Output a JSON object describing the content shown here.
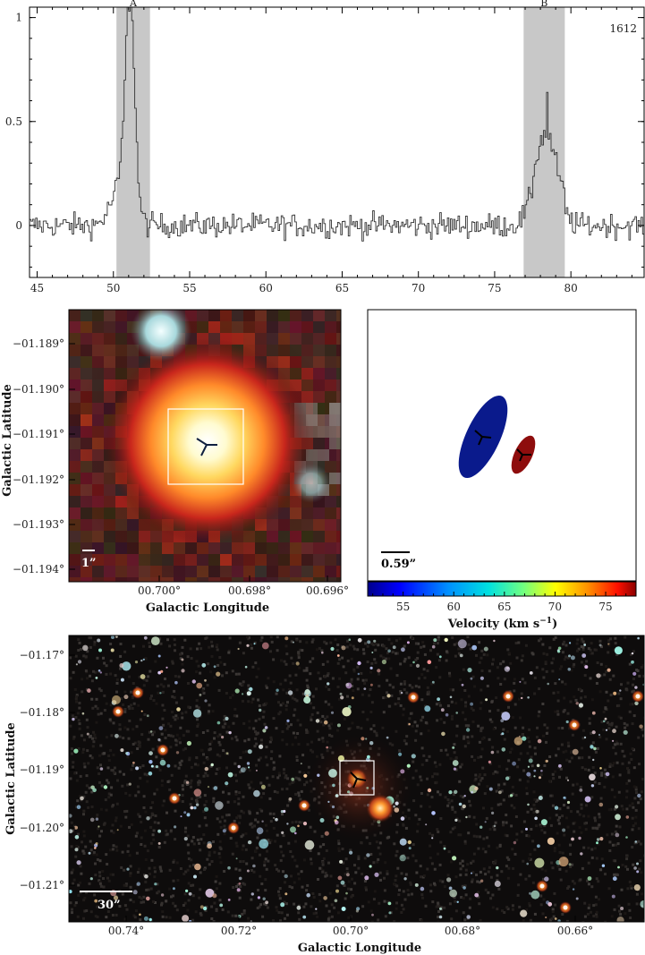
{
  "chart_data": [
    {
      "type": "line",
      "annotation": "1612",
      "regions": [
        {
          "label": "A",
          "x_range": [
            50.2,
            52.4
          ]
        },
        {
          "label": "B",
          "x_range": [
            76.9,
            79.6
          ]
        }
      ],
      "xlim": [
        44.5,
        84.8
      ],
      "ylim": [
        -0.25,
        1.05
      ],
      "xticks": [
        45,
        50,
        55,
        60,
        65,
        70,
        75,
        80
      ],
      "yticks": [
        0,
        0.5,
        1
      ],
      "ytick_labels": [
        "0",
        "0.5",
        "1"
      ],
      "series": [
        {
          "values_note": "",
          "peaks": [
            {
              "x": 51.0,
              "y": 1.03
            },
            {
              "x": 78.4,
              "y": 0.64
            }
          ]
        }
      ]
    },
    {
      "type": "heatmap",
      "xlabel": "Galactic Longitude",
      "ylabel": "Galactic Latitude",
      "x_ticks": [
        "00.700°",
        "00.698°",
        "00.696°"
      ],
      "y_ticks": [
        "−01.189°",
        "−01.190°",
        "−01.191°",
        "−01.192°",
        "−01.193°",
        "−01.194°"
      ],
      "scale_bar": "1”"
    },
    {
      "type": "scatter",
      "xlabel": "Velocity (km s",
      "xlabel_sup": "−1",
      "xlabel_close": ")",
      "colorbar_range": [
        51.5,
        78.0
      ],
      "colorbar_ticks": [
        "55",
        "60",
        "65",
        "70",
        "75"
      ],
      "colorbar_tick_values": [
        55,
        60,
        65,
        70,
        75
      ],
      "scale_bar": "0.59”",
      "ellipses": [
        {
          "velocity": 51.5,
          "color": "#0a1a8c"
        },
        {
          "velocity": 77.5,
          "color": "#8e0d0d"
        }
      ]
    },
    {
      "type": "heatmap",
      "xlabel": "Galactic Longitude",
      "ylabel": "Galactic Latitude",
      "x_ticks": [
        "00.74°",
        "00.72°",
        "00.70°",
        "00.68°",
        "00.66°"
      ],
      "y_ticks": [
        "−01.17°",
        "−01.18°",
        "−01.19°",
        "−01.20°",
        "−01.21°"
      ],
      "scale_bar": "30”"
    }
  ]
}
